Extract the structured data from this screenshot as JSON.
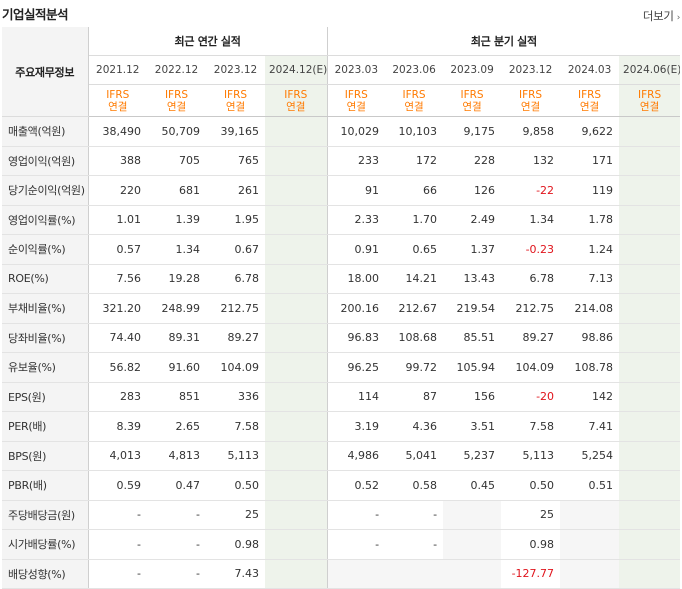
{
  "section": {
    "title": "기업실적분석",
    "more_label": "더보기"
  },
  "table": {
    "row_header": "주요재무정보",
    "groups": {
      "annual": "최근 연간 실적",
      "quarter": "최근 분기 실적"
    },
    "periods": [
      "2021.12",
      "2022.12",
      "2023.12",
      "2024.12(E)",
      "2023.03",
      "2023.06",
      "2023.09",
      "2023.12",
      "2024.03",
      "2024.06(E)"
    ],
    "basis_a": "IFRS",
    "basis_b": "연결",
    "rows": [
      {
        "label": "매출액(억원)",
        "values": [
          "38,490",
          "50,709",
          "39,165",
          "",
          "10,029",
          "10,103",
          "9,175",
          "9,858",
          "9,622",
          ""
        ]
      },
      {
        "label": "영업이익(억원)",
        "values": [
          "388",
          "705",
          "765",
          "",
          "233",
          "172",
          "228",
          "132",
          "171",
          ""
        ]
      },
      {
        "label": "당기순이익(억원)",
        "values": [
          "220",
          "681",
          "261",
          "",
          "91",
          "66",
          "126",
          "-22",
          "119",
          ""
        ]
      },
      {
        "label": "영업이익률(%)",
        "values": [
          "1.01",
          "1.39",
          "1.95",
          "",
          "2.33",
          "1.70",
          "2.49",
          "1.34",
          "1.78",
          ""
        ]
      },
      {
        "label": "순이익률(%)",
        "values": [
          "0.57",
          "1.34",
          "0.67",
          "",
          "0.91",
          "0.65",
          "1.37",
          "-0.23",
          "1.24",
          ""
        ]
      },
      {
        "label": "ROE(%)",
        "values": [
          "7.56",
          "19.28",
          "6.78",
          "",
          "18.00",
          "14.21",
          "13.43",
          "6.78",
          "7.13",
          ""
        ]
      },
      {
        "label": "부채비율(%)",
        "values": [
          "321.20",
          "248.99",
          "212.75",
          "",
          "200.16",
          "212.67",
          "219.54",
          "212.75",
          "214.08",
          ""
        ]
      },
      {
        "label": "당좌비율(%)",
        "values": [
          "74.40",
          "89.31",
          "89.27",
          "",
          "96.83",
          "108.68",
          "85.51",
          "89.27",
          "98.86",
          ""
        ]
      },
      {
        "label": "유보율(%)",
        "values": [
          "56.82",
          "91.60",
          "104.09",
          "",
          "96.25",
          "99.72",
          "105.94",
          "104.09",
          "108.78",
          ""
        ]
      },
      {
        "label": "EPS(원)",
        "values": [
          "283",
          "851",
          "336",
          "",
          "114",
          "87",
          "156",
          "-20",
          "142",
          ""
        ]
      },
      {
        "label": "PER(배)",
        "values": [
          "8.39",
          "2.65",
          "7.58",
          "",
          "3.19",
          "4.36",
          "3.51",
          "7.58",
          "7.41",
          ""
        ]
      },
      {
        "label": "BPS(원)",
        "values": [
          "4,013",
          "4,813",
          "5,113",
          "",
          "4,986",
          "5,041",
          "5,237",
          "5,113",
          "5,254",
          ""
        ]
      },
      {
        "label": "PBR(배)",
        "values": [
          "0.59",
          "0.47",
          "0.50",
          "",
          "0.52",
          "0.58",
          "0.45",
          "0.50",
          "0.51",
          ""
        ]
      },
      {
        "label": "주당배당금(원)",
        "values": [
          "-",
          "-",
          "25",
          "",
          "-",
          "-",
          "",
          "25",
          "",
          ""
        ]
      },
      {
        "label": "시가배당률(%)",
        "values": [
          "-",
          "-",
          "0.98",
          "",
          "-",
          "-",
          "",
          "0.98",
          "",
          ""
        ]
      },
      {
        "label": "배당성향(%)",
        "values": [
          "-",
          "-",
          "7.43",
          "",
          "",
          "",
          "",
          "-127.77",
          "",
          ""
        ]
      }
    ]
  },
  "colors": {
    "basis": "#ff7a00",
    "negative": "#e0141c",
    "estimate_bg": "#eef3eb",
    "label_bg": "#f4f4f4"
  }
}
